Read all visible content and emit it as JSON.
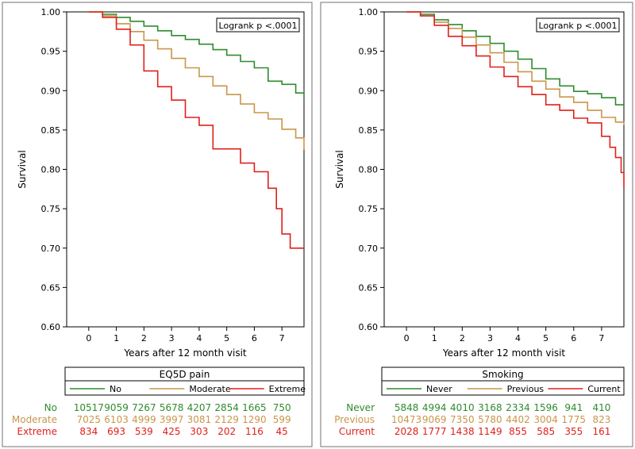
{
  "colors": {
    "green": "#2e8b2e",
    "tan": "#c9964a",
    "red": "#e0201b",
    "axis": "#000000",
    "frame": "#707070"
  },
  "chart_data": [
    {
      "type": "line",
      "ylabel": "Survival",
      "xlabel": "Years after 12 month visit",
      "annotation": "Logrank p <.0001",
      "xlim": [
        -0.8,
        7.8
      ],
      "ylim": [
        0.6,
        1.0
      ],
      "xticks": [
        "0",
        "1",
        "2",
        "3",
        "4",
        "5",
        "6",
        "7"
      ],
      "yticks": [
        "0.60",
        "0.65",
        "0.70",
        "0.75",
        "0.80",
        "0.85",
        "0.90",
        "0.95",
        "1.00"
      ],
      "legend_title": "EQ5D pain",
      "legend_placement": "bottom",
      "series": [
        {
          "name": "No",
          "color": "#2e8b2e",
          "x": [
            0,
            0.5,
            1.0,
            1.5,
            2.0,
            2.5,
            3.0,
            3.5,
            4.0,
            4.5,
            5.0,
            5.5,
            6.0,
            6.5,
            7.0,
            7.5,
            7.8
          ],
          "y": [
            1.0,
            0.997,
            0.993,
            0.988,
            0.982,
            0.976,
            0.97,
            0.965,
            0.959,
            0.952,
            0.945,
            0.937,
            0.929,
            0.912,
            0.908,
            0.897,
            0.889
          ],
          "at_risk": [
            "10517",
            "9059",
            "7267",
            "5678",
            "4207",
            "2854",
            "1665",
            "750"
          ]
        },
        {
          "name": "Moderate",
          "color": "#c9964a",
          "x": [
            0,
            0.5,
            1.0,
            1.5,
            2.0,
            2.5,
            3.0,
            3.5,
            4.0,
            4.5,
            5.0,
            5.5,
            6.0,
            6.5,
            7.0,
            7.5,
            7.8
          ],
          "y": [
            1.0,
            0.995,
            0.985,
            0.975,
            0.964,
            0.953,
            0.941,
            0.929,
            0.918,
            0.906,
            0.895,
            0.883,
            0.872,
            0.864,
            0.851,
            0.84,
            0.825
          ],
          "at_risk": [
            "7025",
            "6103",
            "4999",
            "3997",
            "3081",
            "2129",
            "1290",
            "599"
          ]
        },
        {
          "name": "Extreme",
          "color": "#e0201b",
          "x": [
            0,
            0.5,
            1.0,
            1.5,
            2.0,
            2.5,
            3.0,
            3.5,
            4.0,
            4.5,
            5.0,
            5.5,
            6.0,
            6.5,
            6.8,
            7.0,
            7.3,
            7.8
          ],
          "y": [
            1.0,
            0.993,
            0.978,
            0.958,
            0.925,
            0.905,
            0.888,
            0.866,
            0.856,
            0.826,
            0.826,
            0.808,
            0.797,
            0.776,
            0.75,
            0.718,
            0.7,
            0.7
          ],
          "at_risk": [
            "834",
            "693",
            "539",
            "425",
            "303",
            "202",
            "116",
            "45"
          ]
        }
      ]
    },
    {
      "type": "line",
      "ylabel": "Survival",
      "xlabel": "Years after 12 month visit",
      "annotation": "Logrank p <.0001",
      "xlim": [
        -0.8,
        7.8
      ],
      "ylim": [
        0.6,
        1.0
      ],
      "xticks": [
        "0",
        "1",
        "2",
        "3",
        "4",
        "5",
        "6",
        "7"
      ],
      "yticks": [
        "0.60",
        "0.65",
        "0.70",
        "0.75",
        "0.80",
        "0.85",
        "0.90",
        "0.95",
        "1.00"
      ],
      "legend_title": "Smoking",
      "legend_placement": "bottom",
      "series": [
        {
          "name": "Never",
          "color": "#2e8b2e",
          "x": [
            0,
            0.5,
            1.0,
            1.5,
            2.0,
            2.5,
            3.0,
            3.5,
            4.0,
            4.5,
            5.0,
            5.5,
            6.0,
            6.5,
            7.0,
            7.5,
            7.8
          ],
          "y": [
            1.0,
            0.997,
            0.99,
            0.984,
            0.976,
            0.969,
            0.96,
            0.95,
            0.94,
            0.928,
            0.915,
            0.906,
            0.899,
            0.896,
            0.891,
            0.882,
            0.882
          ],
          "at_risk": [
            "5848",
            "4994",
            "4010",
            "3168",
            "2334",
            "1596",
            "941",
            "410"
          ]
        },
        {
          "name": "Previous",
          "color": "#c9964a",
          "x": [
            0,
            0.5,
            1.0,
            1.5,
            2.0,
            2.5,
            3.0,
            3.5,
            4.0,
            4.5,
            5.0,
            5.5,
            6.0,
            6.5,
            7.0,
            7.5,
            7.8
          ],
          "y": [
            1.0,
            0.995,
            0.987,
            0.979,
            0.968,
            0.958,
            0.948,
            0.936,
            0.924,
            0.912,
            0.902,
            0.892,
            0.885,
            0.875,
            0.866,
            0.86,
            0.856
          ],
          "at_risk": [
            "10473",
            "9069",
            "7350",
            "5780",
            "4402",
            "3004",
            "1775",
            "823"
          ]
        },
        {
          "name": "Current",
          "color": "#e0201b",
          "x": [
            0,
            0.5,
            1.0,
            1.5,
            2.0,
            2.5,
            3.0,
            3.5,
            4.0,
            4.5,
            5.0,
            5.5,
            6.0,
            6.5,
            7.0,
            7.3,
            7.5,
            7.7,
            7.8
          ],
          "y": [
            1.0,
            0.995,
            0.983,
            0.969,
            0.957,
            0.944,
            0.93,
            0.918,
            0.905,
            0.895,
            0.882,
            0.875,
            0.865,
            0.859,
            0.842,
            0.828,
            0.815,
            0.796,
            0.777
          ],
          "at_risk": [
            "2028",
            "1777",
            "1438",
            "1149",
            "855",
            "585",
            "355",
            "161"
          ]
        }
      ]
    }
  ]
}
